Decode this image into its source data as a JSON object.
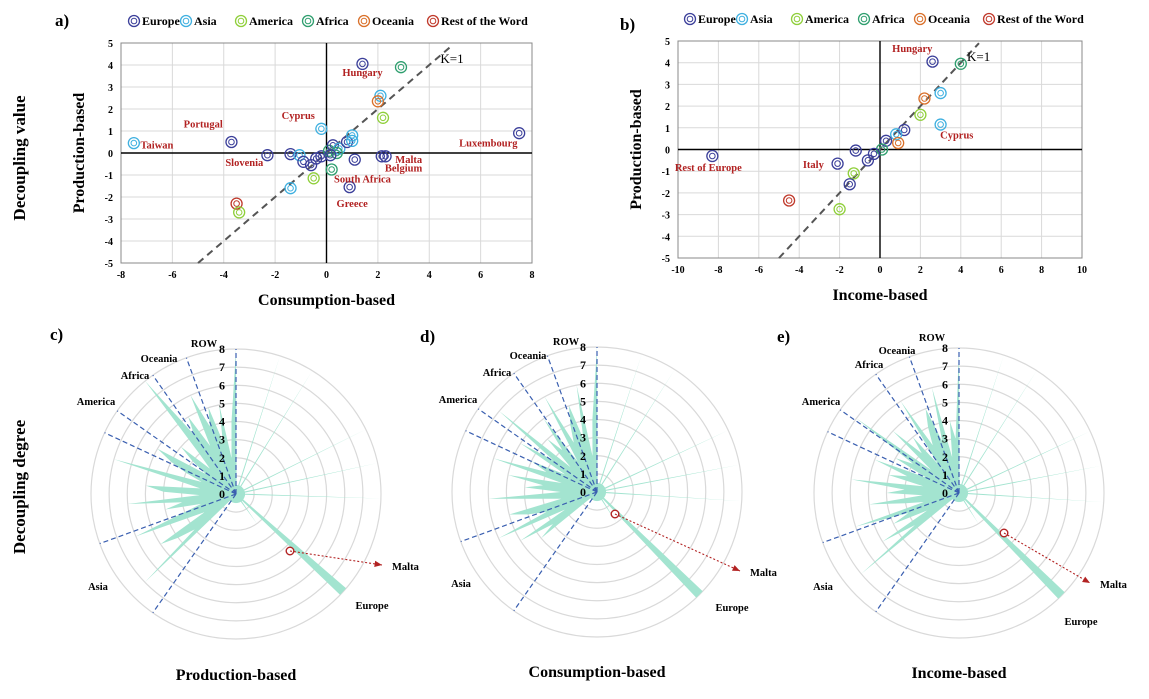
{
  "labels": {
    "panel_a": "a)",
    "panel_b": "b)",
    "panel_c": "c)",
    "panel_d": "d)",
    "panel_e": "e)",
    "decoupling_value": "Decoupling value",
    "decoupling_degree": "Decoupling degree",
    "k_line": "K=1"
  },
  "legend": [
    {
      "name": "Europe",
      "color": "#3b3f9a"
    },
    {
      "name": "Asia",
      "color": "#3fb0e0"
    },
    {
      "name": "America",
      "color": "#8fcf3a"
    },
    {
      "name": "Africa",
      "color": "#2e9e6e"
    },
    {
      "name": "Oceania",
      "color": "#d9702a"
    },
    {
      "name": "Rest of the Word",
      "color": "#c0392b"
    }
  ],
  "colors": {
    "fill": "#a3e4d0",
    "label": "#b22222",
    "dash": "#3a5fb0",
    "k": "#555555",
    "axis": "#000000",
    "grid": "#d9d9d9"
  },
  "chart_data": [
    {
      "type": "scatter",
      "id": "a",
      "xlabel": "Consumption-based",
      "ylabel": "Production-based",
      "xlim": [
        -8,
        8
      ],
      "ylim": [
        -5,
        5
      ],
      "xticks": [
        -8,
        -6,
        -4,
        -2,
        0,
        2,
        4,
        6,
        8
      ],
      "yticks": [
        -5,
        -4,
        -3,
        -2,
        -1,
        0,
        1,
        2,
        3,
        4,
        5
      ],
      "points": [
        {
          "x": 1.4,
          "y": 4.05,
          "g": 0
        },
        {
          "x": 2.9,
          "y": 3.9,
          "g": 3
        },
        {
          "x": 2.1,
          "y": 2.6,
          "g": 1
        },
        {
          "x": 2.0,
          "y": 2.35,
          "g": 4
        },
        {
          "x": 2.2,
          "y": 1.6,
          "g": 2
        },
        {
          "x": -0.2,
          "y": 1.1,
          "g": 1
        },
        {
          "x": -7.5,
          "y": 0.45,
          "g": 1
        },
        {
          "x": -3.7,
          "y": 0.5,
          "g": 0
        },
        {
          "x": 7.5,
          "y": 0.9,
          "g": 0
        },
        {
          "x": -2.3,
          "y": -0.1,
          "g": 0
        },
        {
          "x": -1.4,
          "y": -0.05,
          "g": 0
        },
        {
          "x": -1.05,
          "y": -0.1,
          "g": 1
        },
        {
          "x": -0.9,
          "y": -0.4,
          "g": 0
        },
        {
          "x": -0.6,
          "y": -0.55,
          "g": 0
        },
        {
          "x": -0.4,
          "y": -0.25,
          "g": 0
        },
        {
          "x": -0.2,
          "y": -0.15,
          "g": 0
        },
        {
          "x": 0.1,
          "y": 0.1,
          "g": 3
        },
        {
          "x": 0.25,
          "y": 0.35,
          "g": 0
        },
        {
          "x": 0.5,
          "y": 0.2,
          "g": 1
        },
        {
          "x": 0.8,
          "y": 0.5,
          "g": 0
        },
        {
          "x": 1.0,
          "y": 0.8,
          "g": 1
        },
        {
          "x": 1.0,
          "y": 0.55,
          "g": 1
        },
        {
          "x": 0.4,
          "y": 0.0,
          "g": 3
        },
        {
          "x": 0.15,
          "y": -0.1,
          "g": 0
        },
        {
          "x": 0.2,
          "y": -0.75,
          "g": 3
        },
        {
          "x": 1.1,
          "y": -0.3,
          "g": 0
        },
        {
          "x": 2.15,
          "y": -0.15,
          "g": 0
        },
        {
          "x": 2.3,
          "y": -0.15,
          "g": 0
        },
        {
          "x": 0.9,
          "y": -1.55,
          "g": 0
        },
        {
          "x": -1.4,
          "y": -1.6,
          "g": 1
        },
        {
          "x": -0.5,
          "y": -1.15,
          "g": 2
        },
        {
          "x": -3.5,
          "y": -2.3,
          "g": 5
        },
        {
          "x": -3.4,
          "y": -2.7,
          "g": 2
        }
      ],
      "annotations": [
        {
          "text": "Hungary",
          "x": 1.4,
          "y": 3.5
        },
        {
          "text": "Portugal",
          "x": -4.8,
          "y": 1.15
        },
        {
          "text": "Taiwan",
          "x": -6.6,
          "y": 0.2
        },
        {
          "text": "Cyprus",
          "x": -1.1,
          "y": 1.55
        },
        {
          "text": "Luxembourg",
          "x": 6.3,
          "y": 0.3
        },
        {
          "text": "Slovenia",
          "x": -3.2,
          "y": -0.6
        },
        {
          "text": "Malta",
          "x": 3.2,
          "y": -0.45
        },
        {
          "text": "Belgium",
          "x": 3.0,
          "y": -0.85
        },
        {
          "text": "South Africa",
          "x": 1.4,
          "y": -1.35
        },
        {
          "text": "Greece",
          "x": 1.0,
          "y": -2.45
        }
      ]
    },
    {
      "type": "scatter",
      "id": "b",
      "xlabel": "Income-based",
      "ylabel": "Production-based",
      "xlim": [
        -10,
        10
      ],
      "ylim": [
        -5,
        5
      ],
      "xticks": [
        -10,
        -8,
        -6,
        -4,
        -2,
        0,
        2,
        4,
        6,
        8,
        10
      ],
      "yticks": [
        -5,
        -4,
        -3,
        -2,
        -1,
        0,
        1,
        2,
        3,
        4,
        5
      ],
      "points": [
        {
          "x": 2.6,
          "y": 4.05,
          "g": 0
        },
        {
          "x": 4.0,
          "y": 3.95,
          "g": 3
        },
        {
          "x": 3.0,
          "y": 2.6,
          "g": 1
        },
        {
          "x": 2.2,
          "y": 2.35,
          "g": 4
        },
        {
          "x": 2.0,
          "y": 1.6,
          "g": 2
        },
        {
          "x": 3.0,
          "y": 1.15,
          "g": 1
        },
        {
          "x": 1.2,
          "y": 0.9,
          "g": 0
        },
        {
          "x": 0.8,
          "y": 0.7,
          "g": 1
        },
        {
          "x": 0.9,
          "y": 0.3,
          "g": 4
        },
        {
          "x": 0.3,
          "y": 0.4,
          "g": 0
        },
        {
          "x": 0.1,
          "y": 0.0,
          "g": 3
        },
        {
          "x": -0.3,
          "y": -0.2,
          "g": 0
        },
        {
          "x": -0.6,
          "y": -0.5,
          "g": 0
        },
        {
          "x": -1.2,
          "y": -0.05,
          "g": 0
        },
        {
          "x": -2.1,
          "y": -0.65,
          "g": 0
        },
        {
          "x": -1.3,
          "y": -1.1,
          "g": 2
        },
        {
          "x": -1.5,
          "y": -1.6,
          "g": 0
        },
        {
          "x": -8.3,
          "y": -0.3,
          "g": 0
        },
        {
          "x": -4.5,
          "y": -2.35,
          "g": 5
        },
        {
          "x": -2.0,
          "y": -2.75,
          "g": 2
        }
      ],
      "annotations": [
        {
          "text": "Hungary",
          "x": 1.6,
          "y": 4.5
        },
        {
          "text": "Cyprus",
          "x": 3.8,
          "y": 0.5
        },
        {
          "text": "Rest of Europe",
          "x": -8.5,
          "y": -1.0
        },
        {
          "text": "Italy",
          "x": -3.3,
          "y": -0.85
        }
      ]
    },
    {
      "type": "radar",
      "id": "c",
      "title": "Production-based",
      "rmax": 8,
      "ticks": [
        0,
        1,
        2,
        3,
        4,
        5,
        6,
        7,
        8
      ],
      "values": [
        8,
        0.5,
        0.5,
        0.5,
        0.5,
        8,
        0.5,
        0.5,
        0.5,
        8,
        0.5,
        0.5,
        0.5,
        0.5,
        0.5,
        0.5,
        0.5,
        0.5,
        8,
        0.5,
        0.5,
        0.5,
        8,
        0.5,
        0.5,
        0.5,
        8,
        0.5,
        0.5,
        0.5,
        0.5,
        0.5,
        0.5,
        0.5,
        0.5,
        0.5,
        0.5,
        8,
        8,
        0.5,
        0.5,
        2,
        0.5,
        0.5,
        0.5,
        0.5,
        0.5,
        0.5,
        0.5,
        0.5,
        0.5,
        0.5,
        0.5,
        0.5,
        0.5,
        0.5,
        0.5,
        0.5,
        0.5,
        0.5,
        0.5,
        0.5,
        0.5,
        0.5,
        7,
        3,
        4,
        5,
        2,
        3,
        6,
        3,
        2,
        4,
        3,
        6,
        2,
        4,
        5,
        2,
        3,
        7,
        2,
        3,
        4,
        5,
        2,
        3,
        4,
        2,
        3,
        8,
        4,
        5,
        3,
        6,
        4,
        5,
        3,
        5,
        2,
        4
      ],
      "group_labels": [
        "ROW",
        "Oceania",
        "Africa",
        "America",
        "Asia",
        "Europe"
      ],
      "malta_label": "Malta"
    },
    {
      "type": "radar",
      "id": "d",
      "title": "Consumption-based",
      "rmax": 8,
      "ticks": [
        0,
        1,
        2,
        3,
        4,
        5,
        6,
        7,
        8
      ],
      "values": [
        8,
        0.5,
        0.5,
        0.5,
        0.5,
        8,
        0.5,
        0.5,
        0.5,
        8,
        0.5,
        0.5,
        0.5,
        0.5,
        0.5,
        0.5,
        0.5,
        0.5,
        8,
        0.5,
        0.5,
        0.5,
        8,
        0.5,
        0.5,
        0.5,
        8,
        0.5,
        0.5,
        0.5,
        0.5,
        0.5,
        0.5,
        0.5,
        0.5,
        0.5,
        0.5,
        8,
        8,
        0.5,
        0.5,
        2,
        0.5,
        0.5,
        0.5,
        0.5,
        0.5,
        0.5,
        0.5,
        0.5,
        0.5,
        0.5,
        0.5,
        0.5,
        0.5,
        0.5,
        0.5,
        0.5,
        0.5,
        0.5,
        0.5,
        0.5,
        0.5,
        0.5,
        4,
        3,
        5,
        2,
        6,
        3,
        4,
        5,
        2,
        3,
        6,
        2,
        4,
        3,
        5,
        2,
        6,
        3,
        4,
        2,
        5,
        3,
        7,
        2,
        4,
        3,
        5,
        2,
        6,
        3,
        4,
        5,
        3,
        6,
        2,
        4
      ],
      "group_labels": [
        "ROW",
        "Oceania",
        "Africa",
        "America",
        "Asia",
        "Europe"
      ],
      "malta_label": "Malta"
    },
    {
      "type": "radar",
      "id": "e",
      "title": "Income-based",
      "rmax": 8,
      "ticks": [
        0,
        1,
        2,
        3,
        4,
        5,
        6,
        7,
        8
      ],
      "values": [
        8,
        0.5,
        0.5,
        0.5,
        0.5,
        8,
        0.5,
        0.5,
        0.5,
        8,
        0.5,
        0.5,
        0.5,
        0.5,
        0.5,
        0.5,
        0.5,
        0.5,
        8,
        0.5,
        0.5,
        0.5,
        8,
        0.5,
        0.5,
        0.5,
        8,
        0.5,
        0.5,
        0.5,
        0.5,
        0.5,
        0.5,
        0.5,
        0.5,
        0.5,
        0.5,
        8,
        8,
        0.5,
        0.5,
        2,
        0.5,
        0.5,
        0.5,
        0.5,
        0.5,
        0.5,
        0.5,
        0.5,
        0.5,
        0.5,
        0.5,
        0.5,
        0.5,
        0.5,
        0.5,
        0.5,
        0.5,
        0.5,
        0.5,
        0.5,
        0.5,
        0.5,
        7,
        3,
        5,
        2,
        4,
        3,
        6,
        2,
        3,
        5,
        2,
        4,
        3,
        6,
        2,
        4,
        3,
        5,
        2,
        4,
        3,
        7,
        2,
        5,
        3,
        4,
        2,
        6,
        3,
        4,
        5,
        3,
        6,
        2,
        4,
        3
      ],
      "group_labels": [
        "ROW",
        "Oceania",
        "Africa",
        "America",
        "Asia",
        "Europe"
      ],
      "malta_label": "Malta"
    }
  ]
}
